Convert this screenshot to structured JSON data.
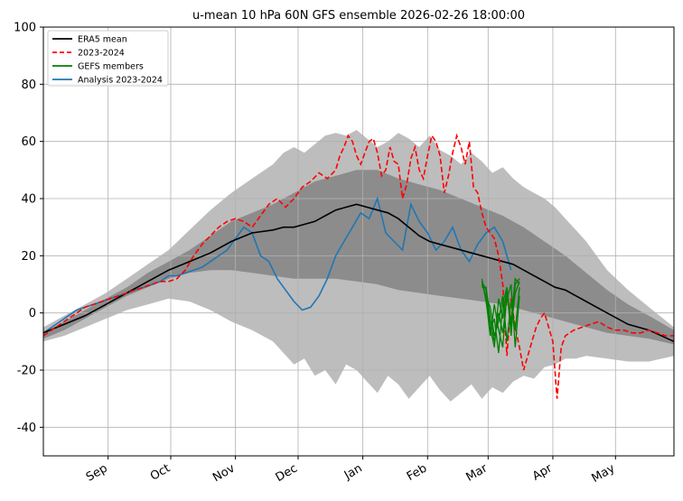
{
  "chart_data": {
    "type": "line",
    "title": "u-mean 10 hPa 60N GFS ensemble 2026-02-26 18:00:00",
    "xlabel": "",
    "ylabel": "",
    "ylim": [
      -50,
      100
    ],
    "xlim_day": [
      0,
      302
    ],
    "grid": true,
    "legend_position": "top-left",
    "y_ticks": [
      -40,
      -20,
      0,
      20,
      40,
      60,
      80,
      100
    ],
    "x_ticks": [
      {
        "label": "Sep",
        "day": 31
      },
      {
        "label": "Oct",
        "day": 61
      },
      {
        "label": "Nov",
        "day": 92
      },
      {
        "label": "Dec",
        "day": 122
      },
      {
        "label": "Jan",
        "day": 153
      },
      {
        "label": "Feb",
        "day": 184
      },
      {
        "label": "Mar",
        "day": 213
      },
      {
        "label": "Apr",
        "day": 244
      },
      {
        "label": "May",
        "day": 274
      }
    ],
    "colors": {
      "era5": "#000000",
      "season": "#ff0000",
      "gefs": "#008000",
      "analysis": "#1f77b4",
      "outer_band": "#bdbdbd",
      "inner_band": "#8c8c8c"
    },
    "legend": [
      {
        "key": "era5",
        "label": "ERA5 mean"
      },
      {
        "key": "season",
        "label": "2023-2024"
      },
      {
        "key": "gefs",
        "label": "GEFS members"
      },
      {
        "key": "analysis",
        "label": "Analysis 2023-2024"
      }
    ],
    "bands": {
      "outer": {
        "x": [
          0,
          10,
          20,
          30,
          40,
          50,
          60,
          70,
          80,
          90,
          100,
          110,
          115,
          120,
          125,
          130,
          135,
          140,
          145,
          150,
          155,
          160,
          165,
          170,
          175,
          180,
          185,
          190,
          195,
          200,
          205,
          210,
          215,
          220,
          225,
          230,
          235,
          240,
          245,
          250,
          255,
          260,
          270,
          280,
          290,
          302
        ],
        "upper": [
          -5,
          -1,
          3,
          7,
          12,
          17,
          22,
          29,
          36,
          42,
          47,
          52,
          56,
          58,
          56,
          59,
          62,
          63,
          62,
          64,
          61,
          58,
          60,
          63,
          61,
          58,
          62,
          57,
          55,
          52,
          56,
          53,
          49,
          51,
          47,
          44,
          42,
          40,
          37,
          33,
          29,
          25,
          15,
          8,
          2,
          -5
        ],
        "lower": [
          -10,
          -8,
          -5,
          -2,
          1,
          3,
          5,
          4,
          1,
          -3,
          -6,
          -10,
          -14,
          -18,
          -16,
          -22,
          -20,
          -25,
          -18,
          -20,
          -24,
          -28,
          -22,
          -25,
          -30,
          -26,
          -22,
          -27,
          -31,
          -28,
          -25,
          -30,
          -26,
          -28,
          -24,
          -22,
          -23,
          -19,
          -18,
          -16,
          -16,
          -15,
          -16,
          -17,
          -17,
          -15
        ]
      },
      "inner": {
        "x": [
          0,
          10,
          20,
          30,
          40,
          50,
          60,
          70,
          80,
          90,
          100,
          110,
          120,
          130,
          140,
          150,
          160,
          170,
          180,
          190,
          200,
          210,
          220,
          230,
          240,
          250,
          260,
          270,
          280,
          290,
          302
        ],
        "upper": [
          -7,
          -3,
          1,
          5,
          9,
          14,
          18,
          22,
          27,
          32,
          35,
          38,
          42,
          46,
          48,
          50,
          50,
          47,
          45,
          43,
          40,
          37,
          34,
          30,
          25,
          20,
          14,
          8,
          3,
          -1,
          -6
        ],
        "lower": [
          -9,
          -6,
          -2,
          2,
          6,
          9,
          12,
          14,
          15,
          15,
          14,
          13,
          12,
          12,
          12,
          11,
          10,
          8,
          7,
          6,
          5,
          4,
          3,
          1,
          -1,
          -3,
          -5,
          -7,
          -8,
          -9,
          -11
        ]
      }
    },
    "series": [
      {
        "key": "era5",
        "name": "ERA5 mean",
        "x": [
          0,
          10,
          20,
          30,
          40,
          50,
          60,
          70,
          80,
          90,
          100,
          110,
          115,
          120,
          125,
          130,
          135,
          140,
          145,
          150,
          155,
          160,
          165,
          170,
          175,
          180,
          185,
          190,
          195,
          200,
          205,
          210,
          215,
          220,
          225,
          230,
          235,
          240,
          245,
          250,
          260,
          270,
          280,
          290,
          302
        ],
        "y": [
          -7,
          -4,
          -1,
          3,
          7,
          11,
          15,
          18,
          21,
          25,
          28,
          29,
          30,
          30,
          31,
          32,
          34,
          36,
          37,
          38,
          37,
          36,
          35,
          33,
          30,
          27,
          25,
          24,
          23,
          22,
          21,
          20,
          19,
          18,
          17,
          15,
          13,
          11,
          9,
          8,
          4,
          0,
          -4,
          -6,
          -10
        ]
      },
      {
        "key": "season",
        "name": "2023-2024",
        "x": [
          0,
          4,
          8,
          12,
          16,
          20,
          24,
          28,
          32,
          36,
          40,
          44,
          48,
          52,
          56,
          60,
          64,
          68,
          72,
          76,
          80,
          84,
          88,
          92,
          96,
          100,
          104,
          108,
          112,
          116,
          120,
          124,
          128,
          132,
          136,
          140,
          142,
          144,
          146,
          148,
          150,
          152,
          154,
          156,
          158,
          160,
          162,
          164,
          166,
          168,
          170,
          172,
          174,
          176,
          178,
          180,
          182,
          184,
          186,
          188,
          190,
          192,
          194,
          196,
          198,
          200,
          202,
          204,
          206,
          208,
          210,
          212,
          214,
          216,
          218,
          220,
          222,
          224,
          226,
          228,
          230,
          232,
          234,
          236,
          238,
          240,
          242,
          244,
          246,
          248,
          250,
          254,
          258,
          262,
          266,
          270,
          274,
          278,
          282,
          286,
          290,
          294,
          298,
          302
        ],
        "y": [
          -8,
          -6,
          -4,
          -2,
          0,
          2,
          3,
          4,
          5,
          6,
          7,
          8,
          9,
          10,
          11,
          11,
          12,
          15,
          20,
          24,
          27,
          30,
          32,
          33,
          32,
          30,
          34,
          38,
          40,
          37,
          40,
          44,
          46,
          49,
          47,
          50,
          55,
          58,
          62,
          60,
          55,
          52,
          56,
          60,
          61,
          56,
          48,
          50,
          58,
          53,
          52,
          40,
          45,
          54,
          58,
          50,
          47,
          55,
          62,
          60,
          55,
          42,
          48,
          56,
          62,
          58,
          52,
          60,
          44,
          42,
          35,
          30,
          28,
          26,
          20,
          10,
          -15,
          5,
          -5,
          -12,
          -20,
          -15,
          -10,
          -5,
          -2,
          0,
          -5,
          -10,
          -30,
          -12,
          -8,
          -6,
          -5,
          -4,
          -3,
          -5,
          -6,
          -6,
          -7,
          -7,
          -6,
          -7,
          -8,
          -8
        ]
      },
      {
        "key": "analysis",
        "name": "Analysis 2023-2024",
        "x": [
          0,
          4,
          8,
          12,
          16,
          20,
          24,
          28,
          32,
          36,
          40,
          44,
          48,
          52,
          56,
          60,
          64,
          68,
          72,
          76,
          80,
          84,
          88,
          92,
          96,
          100,
          104,
          108,
          112,
          116,
          120,
          124,
          128,
          132,
          136,
          140,
          144,
          148,
          152,
          156,
          160,
          164,
          168,
          172,
          176,
          180,
          184,
          188,
          192,
          196,
          200,
          204,
          208,
          212,
          216,
          220,
          224
        ],
        "y": [
          -7,
          -5,
          -3,
          -1,
          1,
          2,
          3,
          4,
          5,
          6,
          7,
          8,
          9,
          10,
          11,
          13,
          13,
          14,
          15,
          16,
          18,
          20,
          22,
          26,
          30,
          28,
          20,
          18,
          12,
          8,
          4,
          1,
          2,
          6,
          12,
          20,
          25,
          30,
          35,
          33,
          40,
          28,
          25,
          22,
          38,
          32,
          28,
          22,
          25,
          30,
          22,
          18,
          24,
          28,
          30,
          25,
          15
        ]
      },
      {
        "key": "gefs",
        "name": "GEFS members",
        "x": [
          210,
          212,
          214,
          216,
          218,
          220,
          222,
          224,
          226,
          228
        ],
        "members": [
          [
            11,
            8,
            -5,
            -12,
            5,
            -2,
            8,
            -8,
            10,
            12
          ],
          [
            10,
            6,
            2,
            -8,
            -3,
            6,
            -10,
            4,
            -6,
            9
          ],
          [
            12,
            4,
            -6,
            -2,
            -14,
            3,
            9,
            -5,
            7,
            11
          ],
          [
            9,
            9,
            -2,
            -10,
            0,
            -7,
            5,
            10,
            -12,
            6
          ],
          [
            11,
            5,
            -8,
            3,
            -6,
            -12,
            7,
            -3,
            12,
            10
          ]
        ]
      }
    ]
  }
}
